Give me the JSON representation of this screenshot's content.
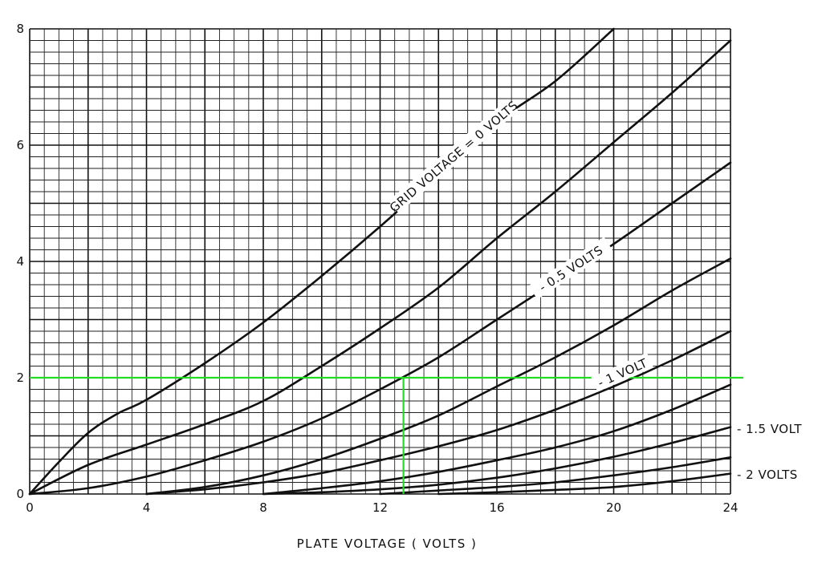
{
  "chart_data": {
    "type": "line",
    "title": "",
    "xlabel": "PLATE VOLTAGE  ( VOLTS )",
    "ylabel": "",
    "xlim": [
      0,
      24
    ],
    "ylim": [
      0,
      8
    ],
    "x_ticks": [
      "0",
      "4",
      "8",
      "12",
      "16",
      "20",
      "24"
    ],
    "y_ticks": [
      "0",
      "2",
      "4",
      "6",
      "8"
    ],
    "grid": true,
    "series": [
      {
        "name": "GRID VOLTAGE = 0 VOLTS",
        "x": [
          0,
          1,
          2,
          3,
          4,
          6,
          8,
          10,
          12,
          14,
          16,
          18,
          20
        ],
        "y": [
          0,
          0.55,
          1.05,
          1.38,
          1.62,
          2.25,
          2.95,
          3.75,
          4.6,
          5.5,
          6.4,
          7.1,
          8.0
        ]
      },
      {
        "name": "",
        "x": [
          0,
          2,
          4,
          6,
          8,
          10,
          12,
          14,
          16,
          18,
          20,
          22,
          24
        ],
        "y": [
          0,
          0.5,
          0.85,
          1.2,
          1.6,
          2.2,
          2.85,
          3.55,
          4.4,
          5.2,
          6.05,
          6.9,
          7.8
        ]
      },
      {
        "name": "- 0.5 VOLTS",
        "x": [
          0,
          2,
          4,
          6,
          8,
          10,
          12,
          14,
          16,
          18,
          20,
          22,
          24
        ],
        "y": [
          0,
          0.1,
          0.3,
          0.58,
          0.9,
          1.3,
          1.8,
          2.35,
          3.0,
          3.65,
          4.3,
          5.0,
          5.7
        ]
      },
      {
        "name": "",
        "x": [
          4,
          6,
          8,
          10,
          12,
          14,
          16,
          18,
          20,
          22,
          24
        ],
        "y": [
          0,
          0.12,
          0.32,
          0.6,
          0.95,
          1.35,
          1.85,
          2.35,
          2.9,
          3.5,
          4.05
        ]
      },
      {
        "name": "- 1 VOLT",
        "x": [
          4,
          6,
          8,
          10,
          12,
          14,
          16,
          18,
          20,
          22,
          24
        ],
        "y": [
          0,
          0.08,
          0.2,
          0.36,
          0.58,
          0.82,
          1.1,
          1.45,
          1.85,
          2.3,
          2.8
        ]
      },
      {
        "name": "",
        "x": [
          8,
          10,
          12,
          14,
          16,
          18,
          20,
          22,
          24
        ],
        "y": [
          0,
          0.1,
          0.22,
          0.38,
          0.58,
          0.8,
          1.08,
          1.45,
          1.88
        ]
      },
      {
        "name": "- 1.5 VOLT",
        "x": [
          8,
          10,
          12,
          14,
          16,
          18,
          20,
          22,
          24
        ],
        "y": [
          0,
          0.03,
          0.08,
          0.16,
          0.28,
          0.44,
          0.64,
          0.88,
          1.15
        ]
      },
      {
        "name": "",
        "x": [
          12,
          14,
          16,
          18,
          20,
          22,
          24
        ],
        "y": [
          0,
          0.06,
          0.12,
          0.2,
          0.32,
          0.46,
          0.63
        ]
      },
      {
        "name": "- 2 VOLTS",
        "x": [
          14,
          16,
          18,
          20,
          22,
          24
        ],
        "y": [
          0,
          0.03,
          0.07,
          0.12,
          0.22,
          0.35
        ]
      }
    ],
    "annotations": {
      "guide_y": 2,
      "guide_x": 12.8,
      "guide_color": "#22dd22",
      "labels": {
        "grid0": "GRID VOLTAGE = 0 VOLTS",
        "m05": "- 0.5 VOLTS",
        "m1": "- 1 VOLT",
        "m15": "- 1.5 VOLT",
        "m2": "- 2 VOLTS"
      }
    }
  }
}
